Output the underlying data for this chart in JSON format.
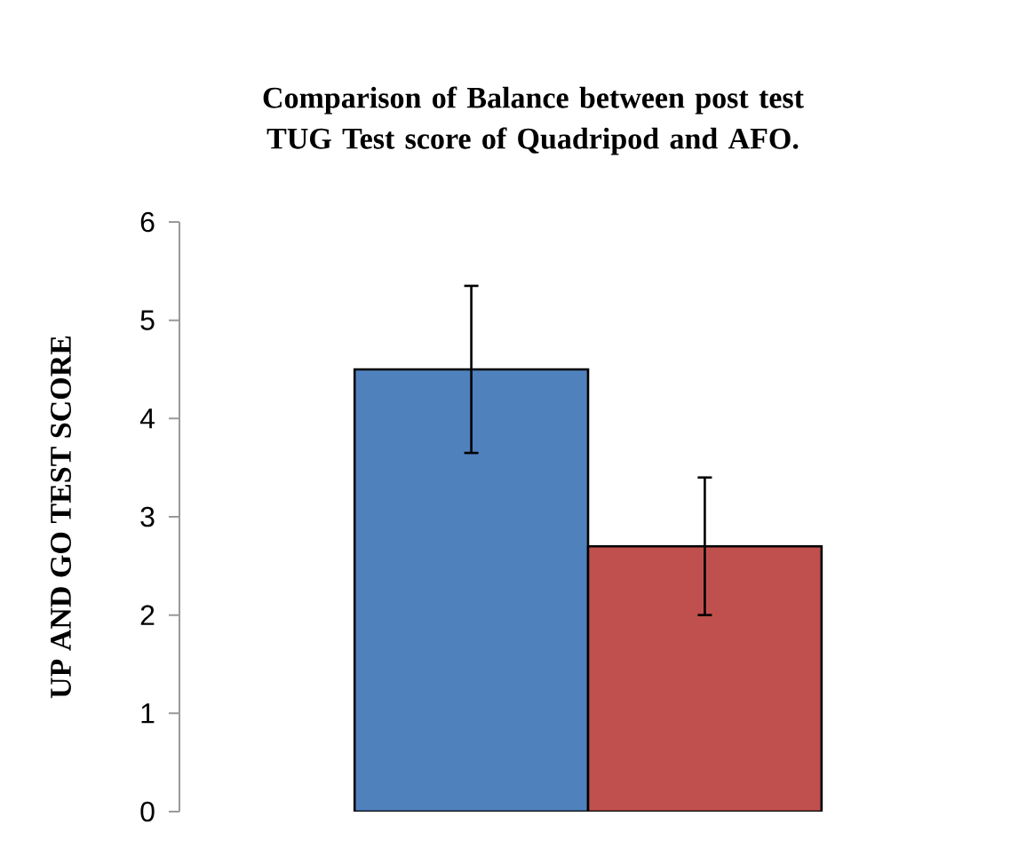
{
  "chart_data": {
    "type": "bar",
    "title": "Comparison of Balance between post test TUG Test score of Quadripod and AFO.",
    "ylabel": "UP AND GO TEST SCORE",
    "categories": [
      null,
      null
    ],
    "values": [
      4.5,
      2.7
    ],
    "errors": [
      0.85,
      0.7
    ],
    "colors": [
      "#4f81bd",
      "#c0504d"
    ],
    "ylim": [
      0,
      6
    ],
    "yticks": [
      0,
      1,
      2,
      3,
      4,
      5,
      6
    ],
    "grid": false,
    "tick_labels": "y"
  }
}
